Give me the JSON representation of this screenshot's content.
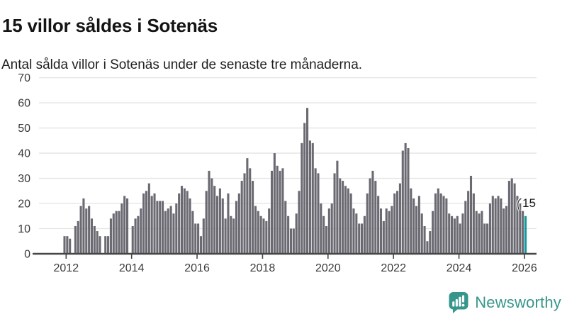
{
  "title": "15 villor såldes i Sotenäs",
  "subtitle": "Antal sålda villor i Sotenäs under de senaste tre månaderna.",
  "logo": {
    "label": "Newsworthy",
    "icon": "newsworthy-bar-chart-speech-bubble",
    "color": "#37968c"
  },
  "chart_data": {
    "type": "bar",
    "title": "15 villor såldes i Sotenäs",
    "subtitle": "Antal sålda villor i Sotenäs under de senaste tre månaderna.",
    "xlabel": "",
    "ylabel": "",
    "ylim": [
      0,
      70
    ],
    "yticks": [
      0,
      10,
      20,
      30,
      40,
      50,
      60,
      70
    ],
    "xticks": [
      "2012",
      "2014",
      "2016",
      "2018",
      "2020",
      "2022",
      "2024",
      "2026"
    ],
    "grid": "horizontal",
    "legend": "none",
    "frequency": "monthly",
    "start_month": "2011-12",
    "end_month": "2026-01",
    "bar_color": "#6b6a72",
    "highlight_color": "#0f9aa0",
    "gridline_color": "#e4e4e4",
    "axis_color": "#454545",
    "values": [
      7,
      7,
      6,
      0,
      11,
      13,
      19,
      22,
      18,
      19,
      14,
      11,
      9,
      7,
      0,
      7,
      7,
      14,
      16,
      17,
      17,
      20,
      23,
      22,
      0,
      11,
      14,
      15,
      18,
      24,
      25,
      28,
      23,
      24,
      21,
      21,
      21,
      17,
      18,
      19,
      16,
      20,
      24,
      27,
      26,
      25,
      22,
      17,
      12,
      12,
      7,
      14,
      25,
      33,
      30,
      27,
      23,
      26,
      22,
      14,
      24,
      15,
      14,
      21,
      24,
      29,
      32,
      38,
      34,
      29,
      19,
      17,
      15,
      14,
      13,
      18,
      33,
      40,
      35,
      33,
      34,
      21,
      15,
      10,
      10,
      16,
      25,
      44,
      52,
      58,
      45,
      44,
      34,
      32,
      20,
      15,
      11,
      18,
      20,
      32,
      37,
      30,
      29,
      27,
      26,
      24,
      18,
      16,
      12,
      12,
      15,
      24,
      30,
      33,
      29,
      23,
      18,
      13,
      18,
      17,
      19,
      24,
      25,
      28,
      41,
      44,
      42,
      26,
      22,
      19,
      23,
      16,
      11,
      5,
      9,
      17,
      24,
      26,
      24,
      23,
      22,
      16,
      15,
      14,
      15,
      12,
      16,
      21,
      25,
      31,
      24,
      17,
      16,
      17,
      12,
      12,
      20,
      23,
      22,
      23,
      22,
      18,
      19,
      29,
      30,
      28,
      23,
      20,
      17,
      15
    ],
    "highlight": {
      "position": "last",
      "month": "2026-01",
      "value": 15,
      "label": "15"
    }
  }
}
